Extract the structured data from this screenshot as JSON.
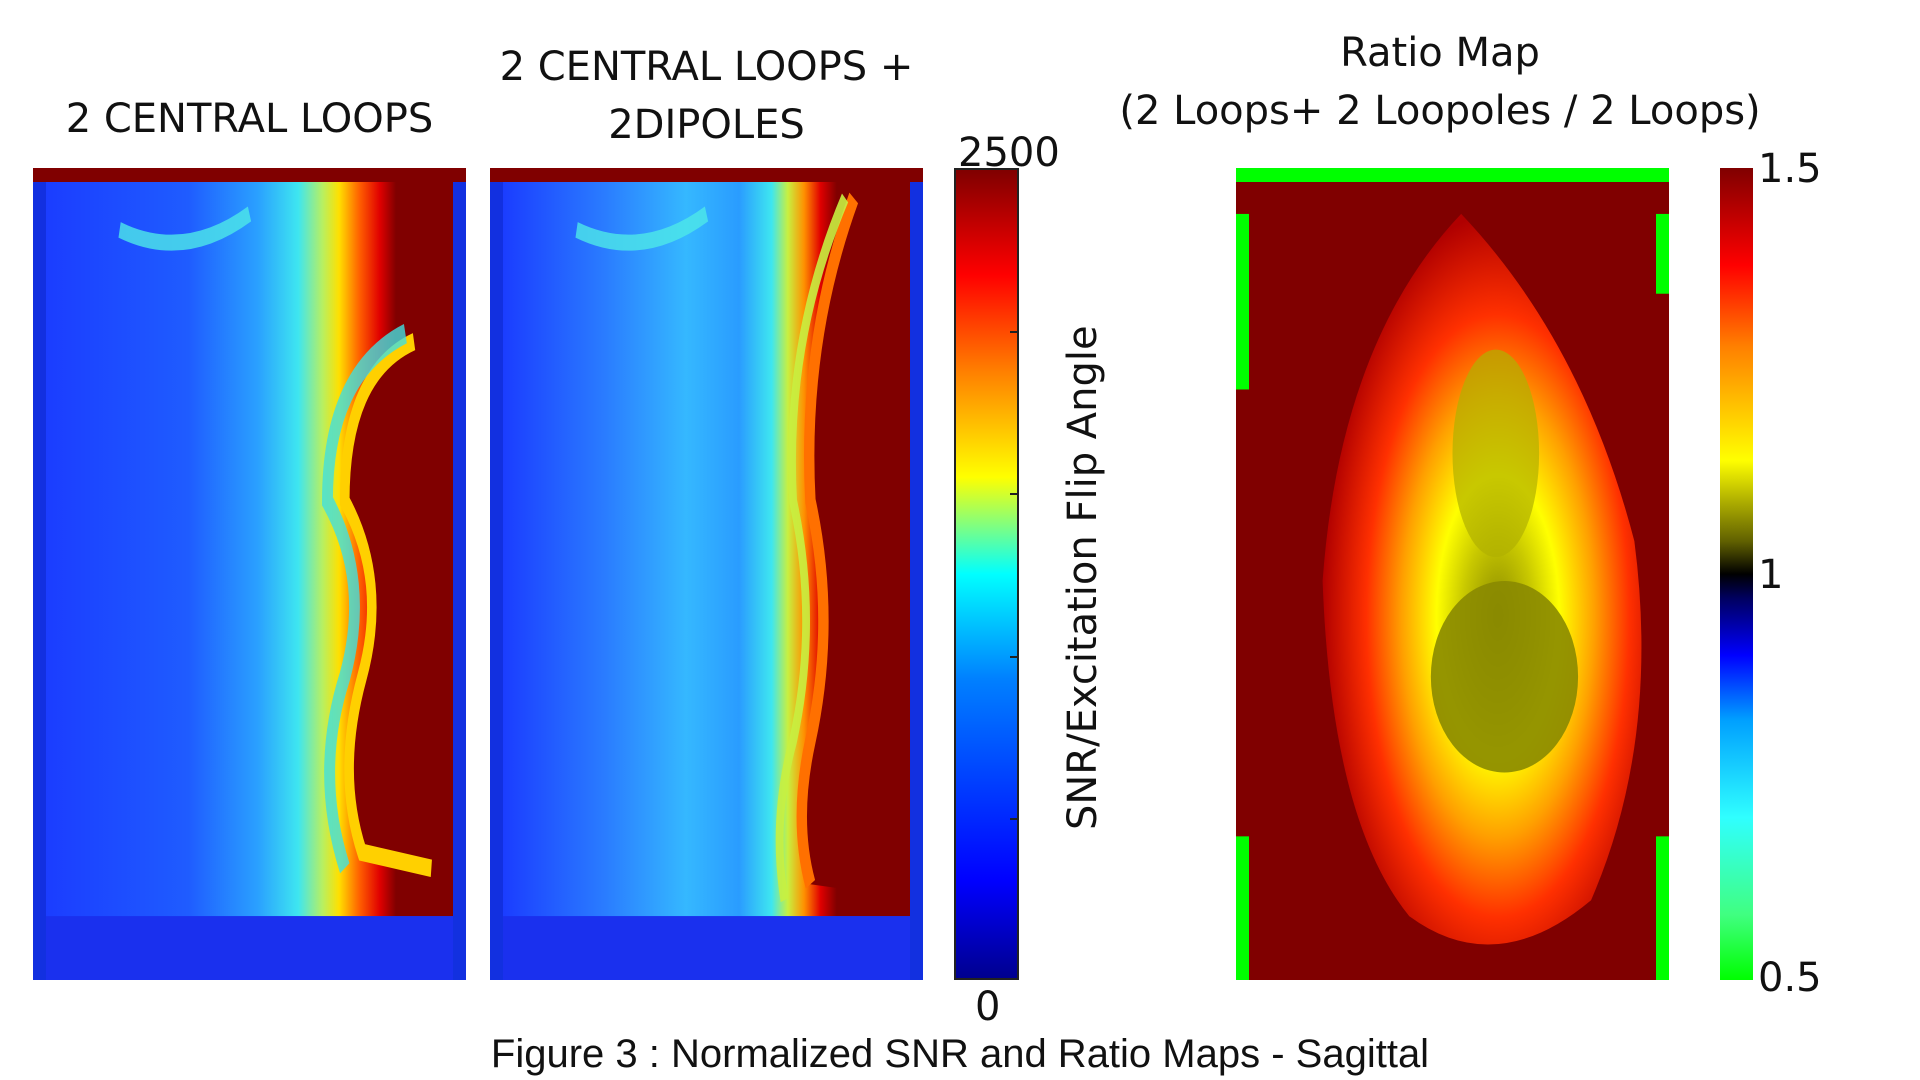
{
  "panels": [
    {
      "title_lines": [
        "2 CENTRAL LOOPS"
      ]
    },
    {
      "title_lines": [
        "2 CENTRAL LOOPS +",
        "2DIPOLES"
      ]
    },
    {
      "title_lines": [
        "Ratio Map",
        "(2 Loops+ 2 Loopoles / 2 Loops)"
      ]
    }
  ],
  "snr_colorbar": {
    "max_label": "2500",
    "min_label": "0",
    "axis_title": "SNR/Excitation Flip Angle",
    "colormap": "jet"
  },
  "ratio_colorbar": {
    "max_label": "1.5",
    "mid_label": "1",
    "min_label": "0.5"
  },
  "caption": "Figure 3 : Normalized SNR and Ratio Maps - Sagittal",
  "colors": {
    "dark_red": "#800000",
    "frame_green": "#00ff00",
    "jet_blue": "#1040ff"
  }
}
